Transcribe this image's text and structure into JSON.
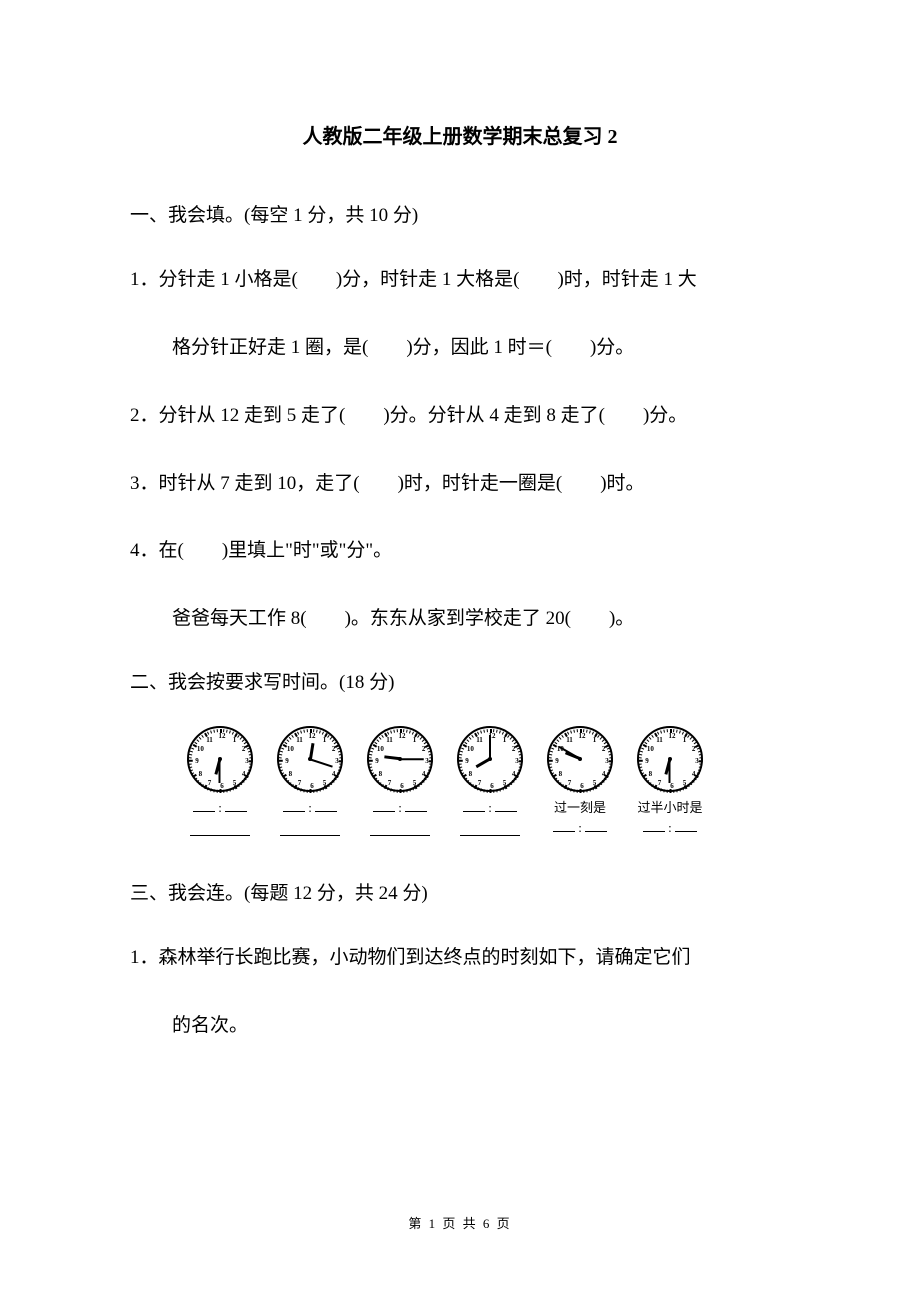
{
  "title": "人教版二年级上册数学期末总复习 2",
  "section1": {
    "header": "一、我会填。(每空 1 分，共 10 分)",
    "q1_line1": "1．分针走 1 小格是(　　)分，时针走 1 大格是(　　)时，时针走 1 大",
    "q1_line2": "格分针正好走 1 圈，是(　　)分，因此 1 时＝(　　)分。",
    "q2": "2．分针从 12 走到 5 走了(　　)分。分针从 4 走到 8 走了(　　)分。",
    "q3": "3．时针从 7 走到 10，走了(　　)时，时针走一圈是(　　)时。",
    "q4_line1": "4．在(　　)里填上\"时\"或\"分\"。",
    "q4_line2": "爸爸每天工作 8(　　)。东东从家到学校走了 20(　　)。"
  },
  "section2": {
    "header": "二、我会按要求写时间。(18 分)",
    "clocks": [
      {
        "hour_angle": 195,
        "minute_angle": 180,
        "label_type": "time"
      },
      {
        "hour_angle": 9,
        "minute_angle": 108,
        "label_type": "time"
      },
      {
        "hour_angle": 277,
        "minute_angle": 90,
        "label_type": "time"
      },
      {
        "hour_angle": 240,
        "minute_angle": 0,
        "label_type": "time"
      },
      {
        "hour_angle": 292,
        "minute_angle": 300,
        "label_type": "text",
        "label_text": "过一刻是"
      },
      {
        "hour_angle": 195,
        "minute_angle": 180,
        "label_type": "text",
        "label_text": "过半小时是"
      }
    ]
  },
  "section3": {
    "header": "三、我会连。(每题 12 分，共 24 分)",
    "q1_line1": "1．森林举行长跑比赛，小动物们到达终点的时刻如下，请确定它们",
    "q1_line2": "的名次。"
  },
  "footer": "第 1 页 共 6 页",
  "clock_numbers": [
    "12",
    "1",
    "2",
    "3",
    "4",
    "5",
    "6",
    "7",
    "8",
    "9",
    "10",
    "11"
  ]
}
